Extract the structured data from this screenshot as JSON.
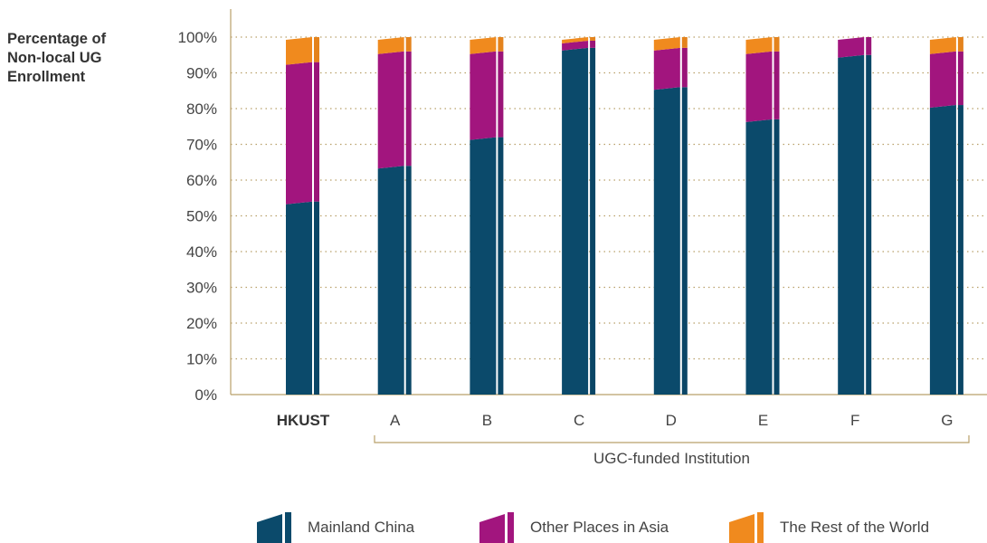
{
  "chart_data": {
    "type": "bar",
    "stacked": true,
    "ylabel": "Percentage of\nNon-local UG\nEnrollment",
    "xlabel": "",
    "group_label": "UGC-funded Institution",
    "ylim": [
      0,
      100
    ],
    "yticks": [
      "0%",
      "10%",
      "20%",
      "30%",
      "40%",
      "50%",
      "60%",
      "70%",
      "80%",
      "90%",
      "100%"
    ],
    "grid": "dotted-horizontal",
    "categories": [
      "HKUST",
      "A",
      "B",
      "C",
      "D",
      "E",
      "F",
      "G"
    ],
    "highlight_category": "HKUST",
    "series": [
      {
        "name": "Mainland China",
        "color": "#0b4a6b",
        "values": [
          54,
          64,
          72,
          97,
          86,
          77,
          95,
          81
        ]
      },
      {
        "name": "Other Places in Asia",
        "color": "#a2157e",
        "values": [
          39,
          32,
          24,
          2,
          11,
          19,
          5,
          15
        ]
      },
      {
        "name": "The Rest of the World",
        "color": "#f08a1e",
        "values": [
          7,
          4,
          4,
          1,
          3,
          4,
          0,
          4
        ]
      }
    ],
    "legend_position": "bottom"
  }
}
